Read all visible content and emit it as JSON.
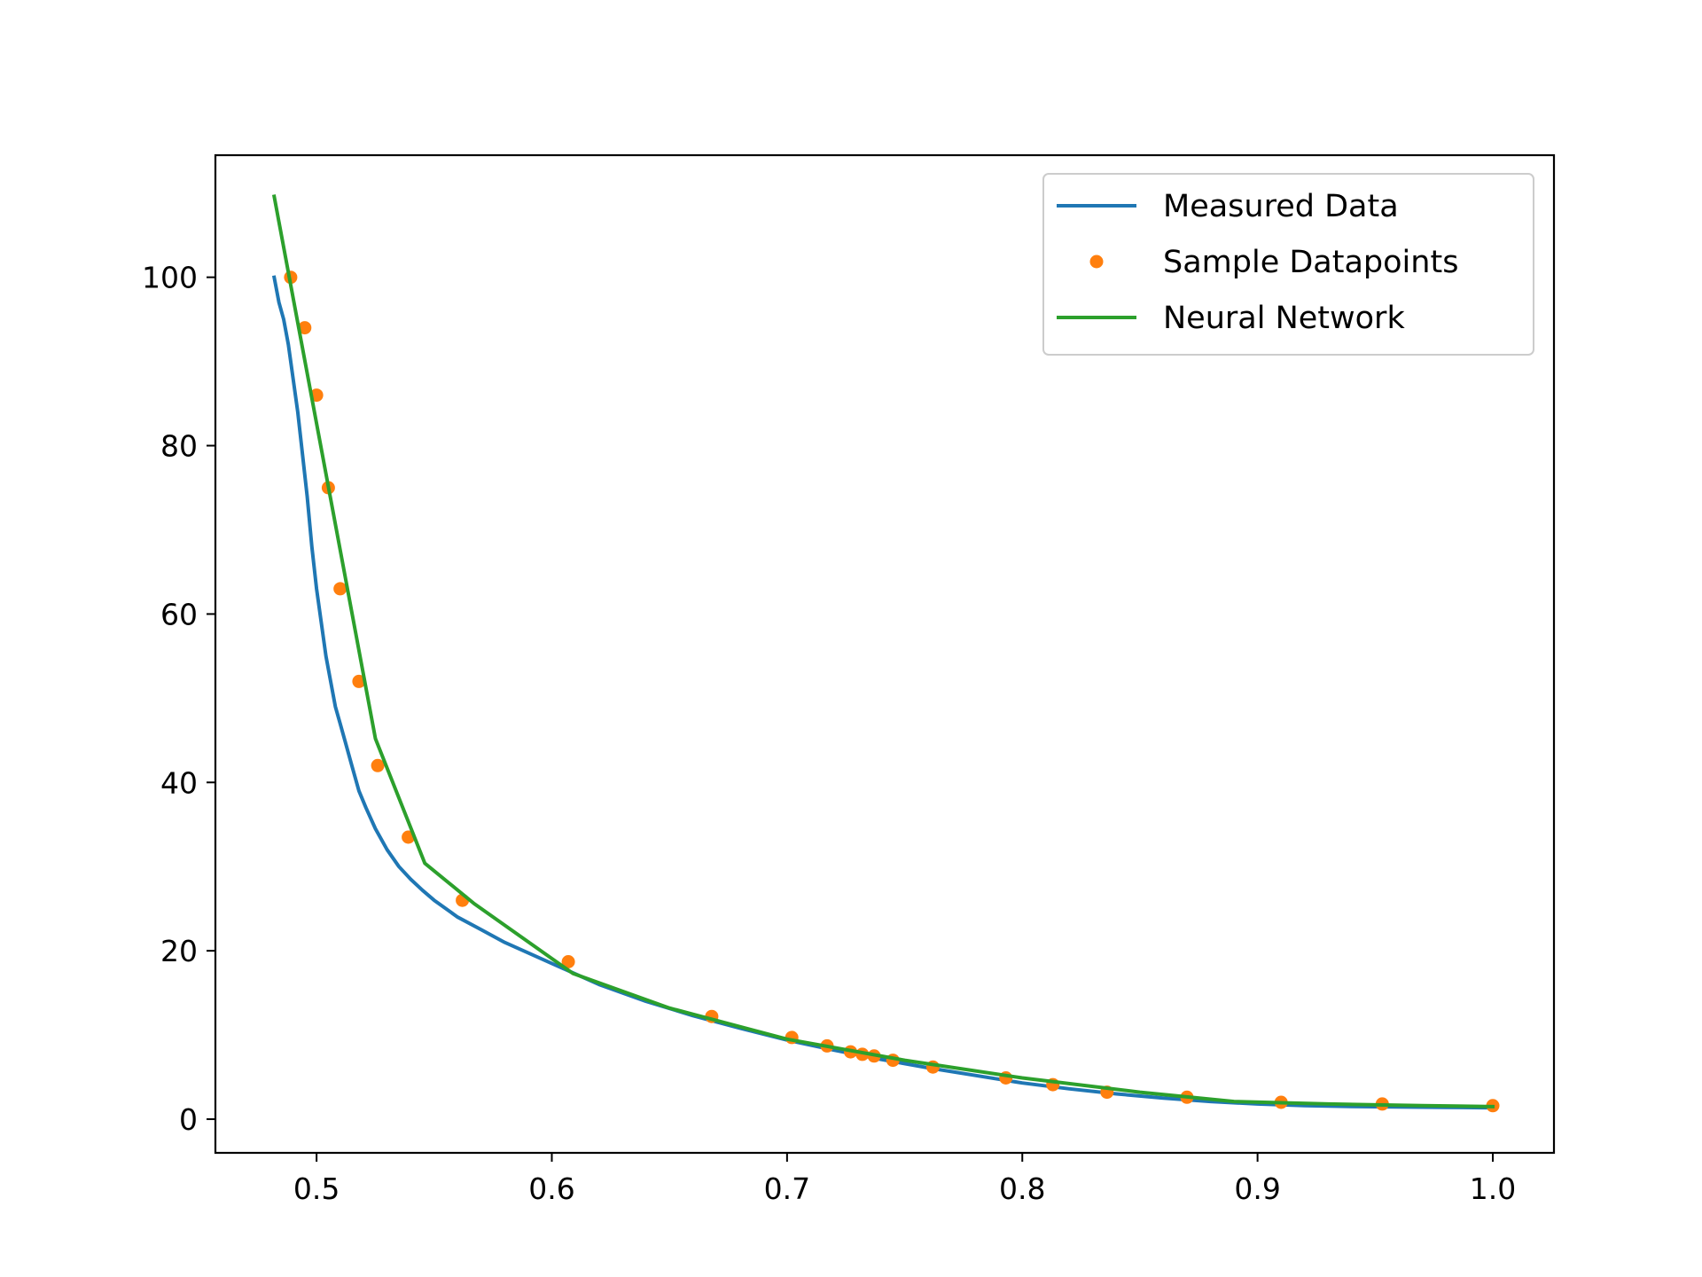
{
  "chart_data": {
    "type": "line",
    "title": "",
    "xlabel": "",
    "ylabel": "",
    "xlim": [
      0.457,
      1.026
    ],
    "ylim": [
      -4,
      114.5
    ],
    "x_ticks": [
      0.5,
      0.6,
      0.7,
      0.8,
      0.9,
      1.0
    ],
    "x_tick_labels": [
      "0.5",
      "0.6",
      "0.7",
      "0.8",
      "0.9",
      "1.0"
    ],
    "y_ticks": [
      0,
      20,
      40,
      60,
      80,
      100
    ],
    "y_tick_labels": [
      "0",
      "20",
      "40",
      "60",
      "80",
      "100"
    ],
    "grid": false,
    "legend_position": "top-right",
    "series": [
      {
        "name": "Measured Data",
        "kind": "line",
        "color": "#1f77b4",
        "x": [
          0.482,
          0.484,
          0.486,
          0.488,
          0.49,
          0.492,
          0.494,
          0.496,
          0.498,
          0.5,
          0.502,
          0.504,
          0.506,
          0.508,
          0.51,
          0.512,
          0.515,
          0.518,
          0.521,
          0.525,
          0.53,
          0.535,
          0.54,
          0.545,
          0.55,
          0.56,
          0.57,
          0.58,
          0.6,
          0.62,
          0.64,
          0.66,
          0.68,
          0.7,
          0.72,
          0.74,
          0.76,
          0.78,
          0.8,
          0.82,
          0.84,
          0.86,
          0.88,
          0.9,
          0.92,
          0.94,
          0.96,
          0.98,
          1.0
        ],
        "y": [
          100,
          97,
          95,
          92,
          88,
          84,
          79,
          74,
          68,
          63,
          59,
          55,
          52,
          49,
          47,
          45,
          42,
          39,
          37,
          34.5,
          32,
          30,
          28.5,
          27.2,
          26,
          24,
          22.5,
          21,
          18.5,
          16,
          14,
          12.3,
          10.8,
          9.4,
          8.2,
          7.1,
          6.1,
          5.2,
          4.3,
          3.6,
          3.0,
          2.5,
          2.1,
          1.8,
          1.6,
          1.5,
          1.45,
          1.4,
          1.35
        ]
      },
      {
        "name": "Sample Datapoints",
        "kind": "scatter",
        "color": "#ff7f0e",
        "x": [
          0.489,
          0.495,
          0.5,
          0.505,
          0.51,
          0.518,
          0.526,
          0.539,
          0.562,
          0.607,
          0.668,
          0.702,
          0.717,
          0.727,
          0.732,
          0.737,
          0.745,
          0.762,
          0.793,
          0.813,
          0.836,
          0.87,
          0.91,
          0.953,
          1.0
        ],
        "y": [
          100,
          94,
          86,
          75,
          63,
          52,
          42,
          33.5,
          26,
          18.7,
          12.2,
          9.7,
          8.7,
          8.0,
          7.7,
          7.5,
          7.0,
          6.2,
          4.9,
          4.1,
          3.2,
          2.6,
          2.0,
          1.8,
          1.6
        ]
      },
      {
        "name": "Neural Network",
        "kind": "line",
        "color": "#2ca02c",
        "x": [
          0.482,
          0.525,
          0.546,
          0.567,
          0.609,
          0.65,
          0.7,
          0.75,
          0.8,
          0.85,
          0.89,
          0.93,
          0.97,
          1.0
        ],
        "y": [
          109.6,
          45.2,
          30.4,
          25.6,
          17.3,
          13.2,
          9.5,
          7.0,
          4.9,
          3.2,
          2.1,
          1.8,
          1.6,
          1.5
        ]
      }
    ]
  }
}
